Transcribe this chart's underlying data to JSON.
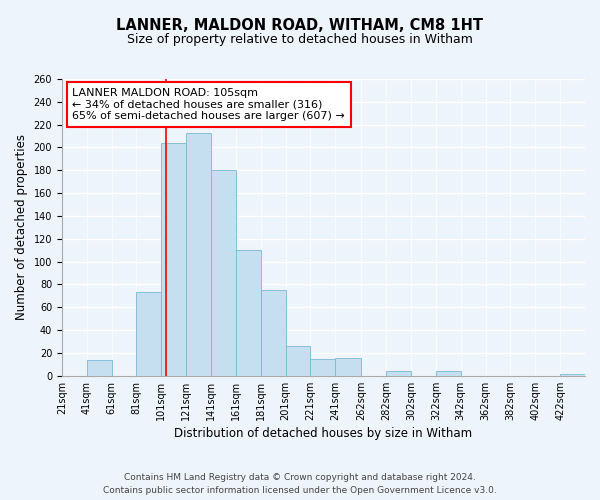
{
  "title": "LANNER, MALDON ROAD, WITHAM, CM8 1HT",
  "subtitle": "Size of property relative to detached houses in Witham",
  "xlabel": "Distribution of detached houses by size in Witham",
  "ylabel": "Number of detached properties",
  "bin_edges": [
    21,
    41,
    61,
    81,
    101,
    121,
    141,
    161,
    181,
    201,
    221,
    241,
    262,
    282,
    302,
    322,
    342,
    362,
    382,
    402,
    422,
    442
  ],
  "bin_labels": [
    "21sqm",
    "41sqm",
    "61sqm",
    "81sqm",
    "101sqm",
    "121sqm",
    "141sqm",
    "161sqm",
    "181sqm",
    "201sqm",
    "221sqm",
    "241sqm",
    "262sqm",
    "282sqm",
    "302sqm",
    "322sqm",
    "342sqm",
    "362sqm",
    "382sqm",
    "402sqm",
    "422sqm"
  ],
  "counts": [
    0,
    14,
    0,
    73,
    204,
    213,
    180,
    110,
    75,
    26,
    15,
    16,
    0,
    4,
    0,
    4,
    0,
    0,
    0,
    0,
    2
  ],
  "bar_color": "#c5dff0",
  "bar_edge_color": "#7bb8d4",
  "property_line_x": 105,
  "property_line_color": "red",
  "ylim": [
    0,
    260
  ],
  "yticks": [
    0,
    20,
    40,
    60,
    80,
    100,
    120,
    140,
    160,
    180,
    200,
    220,
    240,
    260
  ],
  "annotation_title": "LANNER MALDON ROAD: 105sqm",
  "annotation_line1": "← 34% of detached houses are smaller (316)",
  "annotation_line2": "65% of semi-detached houses are larger (607) →",
  "footer_line1": "Contains HM Land Registry data © Crown copyright and database right 2024.",
  "footer_line2": "Contains public sector information licensed under the Open Government Licence v3.0.",
  "background_color": "#eef4fb",
  "grid_color": "white",
  "title_fontsize": 10.5,
  "subtitle_fontsize": 9,
  "axis_label_fontsize": 8.5,
  "tick_fontsize": 7,
  "annotation_fontsize": 8,
  "footer_fontsize": 6.5
}
